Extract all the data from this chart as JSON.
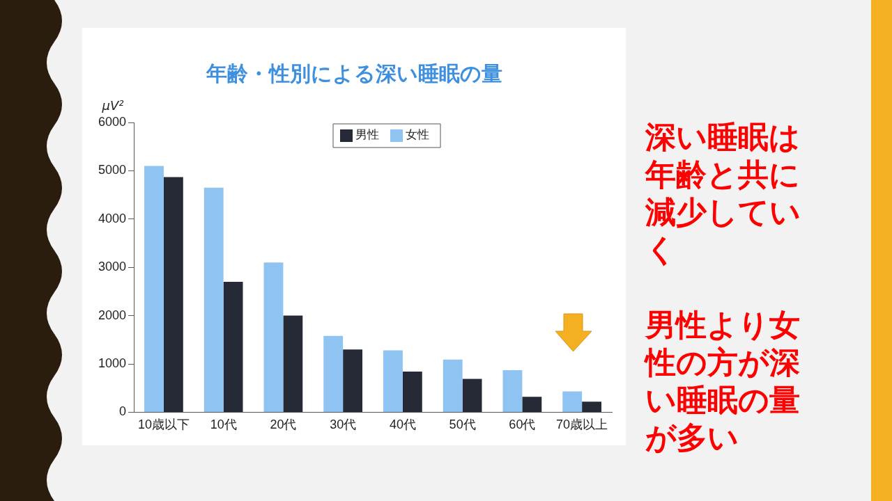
{
  "chart_data": {
    "type": "bar",
    "title": "年齢・性別による深い睡眠の量",
    "ylabel": "μV²",
    "categories": [
      "10歳以下",
      "10代",
      "20代",
      "30代",
      "40代",
      "50代",
      "60代",
      "70歳以上"
    ],
    "series": [
      {
        "name": "女性",
        "color": "#8fc3f2",
        "values": [
          5100,
          4650,
          3100,
          1580,
          1280,
          1090,
          870,
          430
        ]
      },
      {
        "name": "男性",
        "color": "#262a36",
        "values": [
          4870,
          2700,
          2000,
          1300,
          840,
          690,
          320,
          220
        ]
      }
    ],
    "ylim": [
      0,
      6000
    ],
    "yticks": [
      0,
      1000,
      2000,
      3000,
      4000,
      5000,
      6000
    ],
    "grid": false,
    "legend": "top",
    "annotations": [
      "深い睡眠は年齢と共に減少していく",
      "男性より女性の方が深い睡眠の量が多い"
    ]
  }
}
